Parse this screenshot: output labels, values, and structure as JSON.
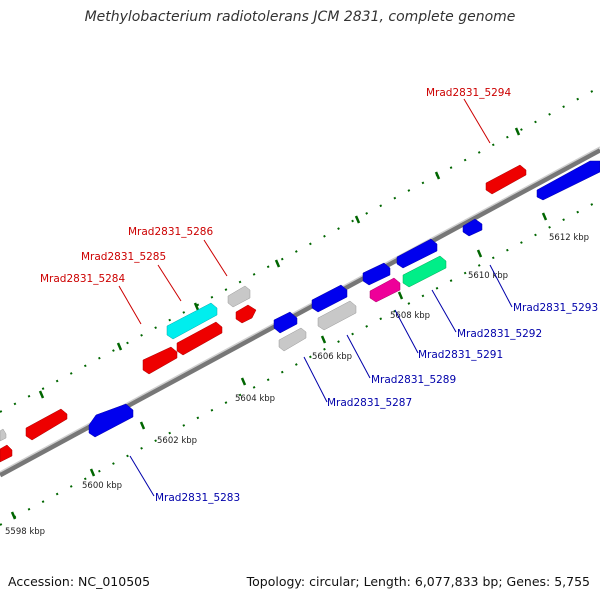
{
  "title": "Methylobacterium radiotolerans JCM 2831, complete genome",
  "footer": {
    "accession": "Accession: NC_010505",
    "summary": "Topology: circular; Length: 6,077,833 bp; Genes: 5,755"
  },
  "colors": {
    "forward_label": "#cc0000",
    "reverse_label": "#0000aa",
    "red": "#ee0000",
    "blue": "#0000ee",
    "grey": "#c8c8c8",
    "cyan": "#00eeee",
    "magenta": "#ee0099",
    "green": "#00ee88",
    "tick": "#006600",
    "backbone": "#888888"
  },
  "scale_labels": [
    "5598 kbp",
    "5600 kbp",
    "5602 kbp",
    "5604 kbp",
    "5606 kbp",
    "5608 kbp",
    "5610 kbp",
    "5612 kbp"
  ],
  "gene_labels": {
    "mrad_5294": "Mrad2831_5294",
    "mrad_5286": "Mrad2831_5286",
    "mrad_5285": "Mrad2831_5285",
    "mrad_5284": "Mrad2831_5284",
    "mrad_5293": "Mrad2831_5293",
    "mrad_5292": "Mrad2831_5292",
    "mrad_5291": "Mrad2831_5291",
    "mrad_5289": "Mrad2831_5289",
    "mrad_5287": "Mrad2831_5287",
    "mrad_5283": "Mrad2831_5283"
  }
}
